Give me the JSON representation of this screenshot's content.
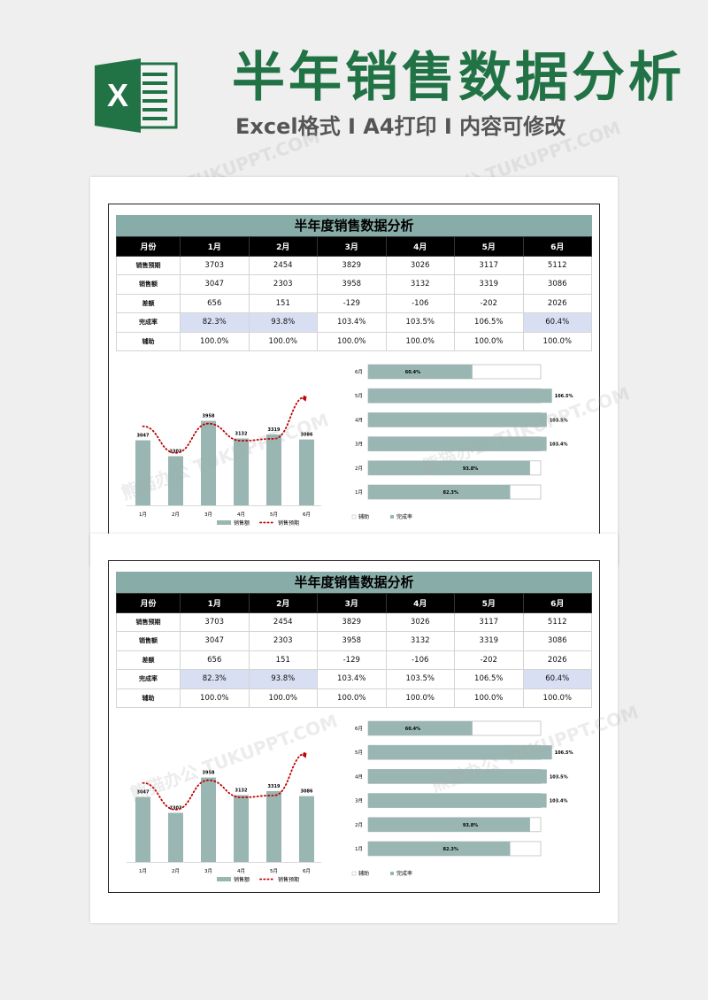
{
  "header": {
    "title": "半年销售数据分析",
    "subtitle": "Excel格式 I A4打印 I 内容可修改",
    "logo_letter": "X",
    "watermark": "熊猫办公 TUKUPPT.COM"
  },
  "sheets": [
    {
      "table_title": "半年度销售数据分析",
      "header_label": "月份",
      "months": [
        "1月",
        "2月",
        "3月",
        "4月",
        "5月",
        "6月"
      ],
      "rows": [
        {
          "label": "销售预期",
          "values": [
            "3703",
            "2454",
            "3829",
            "3026",
            "3117",
            "5112"
          ]
        },
        {
          "label": "销售额",
          "values": [
            "3047",
            "2303",
            "3958",
            "3132",
            "3319",
            "3086"
          ]
        },
        {
          "label": "差额",
          "values": [
            "656",
            "151",
            "-129",
            "-106",
            "-202",
            "2026"
          ]
        },
        {
          "label": "完成率",
          "values": [
            "82.3%",
            "93.8%",
            "103.4%",
            "103.5%",
            "106.5%",
            "60.4%"
          ]
        },
        {
          "label": "辅助",
          "values": [
            "100.0%",
            "100.0%",
            "100.0%",
            "100.0%",
            "100.0%",
            "100.0%"
          ]
        }
      ],
      "legend_bar": "销售额",
      "legend_line": "销售预期",
      "legend_aux": "辅助",
      "legend_rate": "完成率"
    },
    {
      "table_title": "半年度销售数据分析",
      "header_label": "月份",
      "months": [
        "1月",
        "2月",
        "3月",
        "4月",
        "5月",
        "6月"
      ],
      "rows": [
        {
          "label": "销售预期",
          "values": [
            "3703",
            "2454",
            "3829",
            "3026",
            "3117",
            "5112"
          ]
        },
        {
          "label": "销售额",
          "values": [
            "3047",
            "2303",
            "3958",
            "3132",
            "3319",
            "3086"
          ]
        },
        {
          "label": "差额",
          "values": [
            "656",
            "151",
            "-129",
            "-106",
            "-202",
            "2026"
          ]
        },
        {
          "label": "完成率",
          "values": [
            "82.3%",
            "93.8%",
            "103.4%",
            "103.5%",
            "106.5%",
            "60.4%"
          ]
        },
        {
          "label": "辅助",
          "values": [
            "100.0%",
            "100.0%",
            "100.0%",
            "100.0%",
            "100.0%",
            "100.0%"
          ]
        }
      ],
      "legend_bar": "销售额",
      "legend_line": "销售预期",
      "legend_aux": "辅助",
      "legend_rate": "完成率"
    }
  ],
  "colors": {
    "brand": "#217346",
    "bar": "#99b6b3",
    "line": "#c00000",
    "table_header": "#000000",
    "title_band": "#88aca8",
    "highlight": "#d9dff3"
  },
  "chart_data": [
    {
      "type": "bar",
      "categories": [
        "1月",
        "2月",
        "3月",
        "4月",
        "5月",
        "6月"
      ],
      "series": [
        {
          "name": "销售额",
          "kind": "bar",
          "values": [
            3047,
            2303,
            3958,
            3132,
            3319,
            3086
          ],
          "labels": [
            "3047",
            "2303",
            "3958",
            "3132",
            "3319",
            "3086"
          ]
        },
        {
          "name": "销售预期",
          "kind": "line",
          "values": [
            3703,
            2454,
            3829,
            3026,
            3117,
            5112
          ]
        }
      ],
      "legend": "bottom"
    },
    {
      "type": "bar",
      "orientation": "horizontal",
      "categories": [
        "6月",
        "5月",
        "4月",
        "3月",
        "2月",
        "1月"
      ],
      "series": [
        {
          "name": "辅助",
          "values": [
            100,
            100,
            100,
            100,
            100,
            100
          ]
        },
        {
          "name": "完成率",
          "values": [
            60.4,
            106.5,
            103.5,
            103.4,
            93.8,
            82.3
          ],
          "labels": [
            "60.4%",
            "106.5%",
            "103.5%",
            "103.4%",
            "93.8%",
            "82.3%"
          ]
        }
      ],
      "legend": "bottom"
    },
    {
      "type": "bar",
      "categories": [
        "1月",
        "2月",
        "3月",
        "4月",
        "5月",
        "6月"
      ],
      "series": [
        {
          "name": "销售额",
          "kind": "bar",
          "values": [
            3047,
            2303,
            3958,
            3132,
            3319,
            3086
          ],
          "labels": [
            "3047",
            "2303",
            "3958",
            "3132",
            "3319",
            "3086"
          ]
        },
        {
          "name": "销售预期",
          "kind": "line",
          "values": [
            3703,
            2454,
            3829,
            3026,
            3117,
            5112
          ]
        }
      ],
      "legend": "bottom"
    },
    {
      "type": "bar",
      "orientation": "horizontal",
      "categories": [
        "6月",
        "5月",
        "4月",
        "3月",
        "2月",
        "1月"
      ],
      "series": [
        {
          "name": "辅助",
          "values": [
            100,
            100,
            100,
            100,
            100,
            100
          ]
        },
        {
          "name": "完成率",
          "values": [
            60.4,
            106.5,
            103.5,
            103.4,
            93.8,
            82.3
          ],
          "labels": [
            "60.4%",
            "106.5%",
            "103.5%",
            "103.4%",
            "93.8%",
            "82.3%"
          ]
        }
      ],
      "legend": "bottom"
    }
  ]
}
